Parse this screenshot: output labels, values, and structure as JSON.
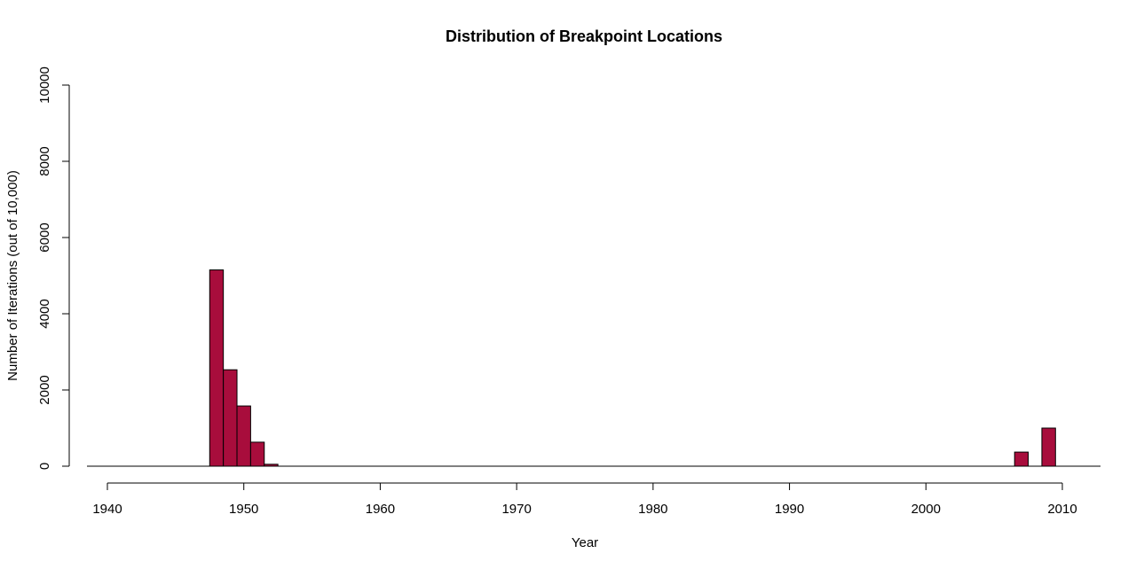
{
  "colors": {
    "bar_fill": "#A80D3C",
    "bar_stroke": "#000000",
    "background": "#FFFFFF"
  },
  "chart_data": {
    "type": "bar",
    "title": "Distribution of Breakpoint Locations",
    "xlabel": "Year",
    "ylabel": "Number of Iterations (out of 10,000)",
    "xlim": [
      1940,
      2010
    ],
    "ylim": [
      0,
      10000
    ],
    "x_ticks": [
      "1940",
      "1950",
      "1960",
      "1970",
      "1980",
      "1990",
      "2000",
      "2010"
    ],
    "y_ticks": [
      "0",
      "2000",
      "4000",
      "6000",
      "8000",
      "10000"
    ],
    "grid": false,
    "legend": false,
    "bin_width": 1,
    "bars": [
      {
        "x": 1948,
        "value": 5150
      },
      {
        "x": 1949,
        "value": 2530
      },
      {
        "x": 1950,
        "value": 1580
      },
      {
        "x": 1951,
        "value": 630
      },
      {
        "x": 1952,
        "value": 50
      },
      {
        "x": 2007,
        "value": 370
      },
      {
        "x": 2009,
        "value": 1000
      }
    ]
  }
}
